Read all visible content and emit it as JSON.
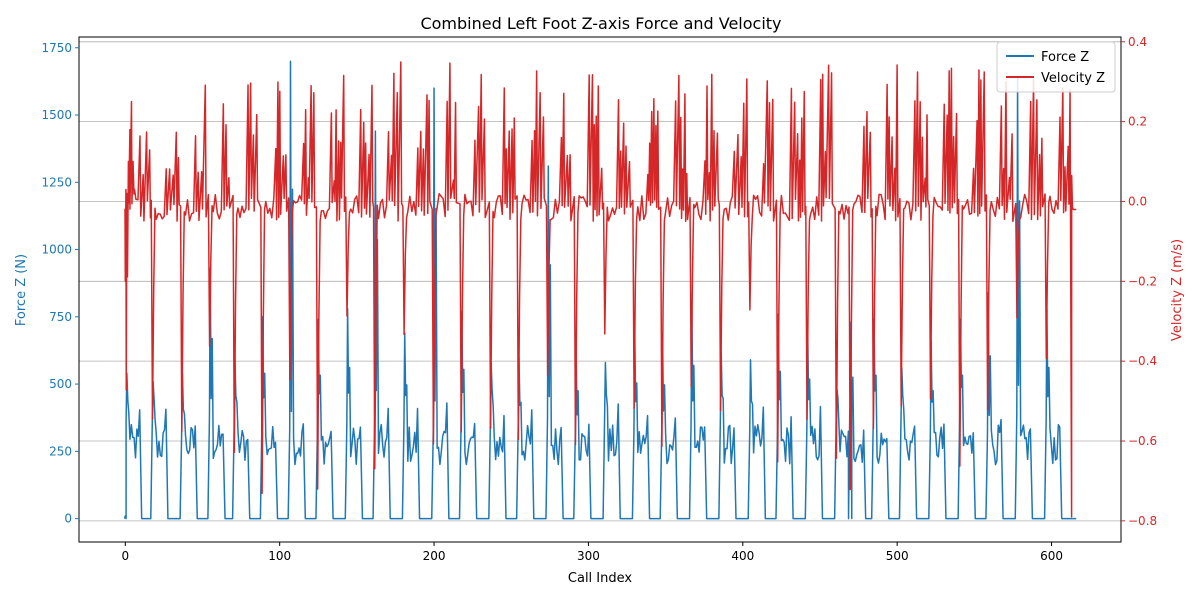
{
  "chart_data": {
    "type": "line",
    "title": "Combined Left Foot Z-axis Force and Velocity",
    "xlabel": "Call Index",
    "ylabel_left": "Force Z (N)",
    "ylabel_right": "Velocity Z (m/s)",
    "xlim": [
      -30,
      645
    ],
    "ylim_left": [
      -87,
      1790
    ],
    "ylim_right": [
      -0.853,
      0.412
    ],
    "xticks": [
      "0",
      "100",
      "200",
      "300",
      "400",
      "500",
      "600"
    ],
    "yticks_left": [
      "0",
      "250",
      "500",
      "750",
      "1000",
      "1250",
      "1500",
      "1750"
    ],
    "yticks_right": [
      "−0.8",
      "−0.6",
      "−0.4",
      "−0.2",
      "0.0",
      "0.2",
      "0.4"
    ],
    "grid": "right axis horizontal only",
    "legend_position": "top-right",
    "colors": {
      "force": "#1f77b4",
      "velocity": "#d62728",
      "grid": "#b0b0b0",
      "axis": "#000000"
    },
    "series": [
      {
        "name": "Force Z",
        "axis": "left",
        "x_start": 0,
        "x_end": 616,
        "peaks": [
          {
            "x": 1,
            "y": 540
          },
          {
            "x": 18,
            "y": 510
          },
          {
            "x": 37,
            "y": 540
          },
          {
            "x": 55,
            "y": 930
          },
          {
            "x": 71,
            "y": 600
          },
          {
            "x": 89,
            "y": 750
          },
          {
            "x": 107,
            "y": 1700
          },
          {
            "x": 125,
            "y": 740
          },
          {
            "x": 144,
            "y": 780
          },
          {
            "x": 162,
            "y": 1440
          },
          {
            "x": 181,
            "y": 690
          },
          {
            "x": 200,
            "y": 1600
          },
          {
            "x": 218,
            "y": 770
          },
          {
            "x": 237,
            "y": 580
          },
          {
            "x": 255,
            "y": 600
          },
          {
            "x": 274,
            "y": 1310
          },
          {
            "x": 292,
            "y": 660
          },
          {
            "x": 311,
            "y": 580
          },
          {
            "x": 330,
            "y": 700
          },
          {
            "x": 348,
            "y": 690
          },
          {
            "x": 367,
            "y": 790
          },
          {
            "x": 386,
            "y": 620
          },
          {
            "x": 405,
            "y": 590
          },
          {
            "x": 423,
            "y": 760
          },
          {
            "x": 442,
            "y": 720
          },
          {
            "x": 461,
            "y": 480
          },
          {
            "x": 470,
            "y": 730
          },
          {
            "x": 485,
            "y": 740
          },
          {
            "x": 503,
            "y": 560
          },
          {
            "x": 522,
            "y": 660
          },
          {
            "x": 541,
            "y": 740
          },
          {
            "x": 559,
            "y": 840
          },
          {
            "x": 578,
            "y": 1640
          },
          {
            "x": 597,
            "y": 780
          }
        ]
      },
      {
        "name": "Velocity Z",
        "axis": "right",
        "x_start": 0,
        "x_end": 616,
        "range": [
          -0.8,
          0.37
        ]
      }
    ]
  }
}
